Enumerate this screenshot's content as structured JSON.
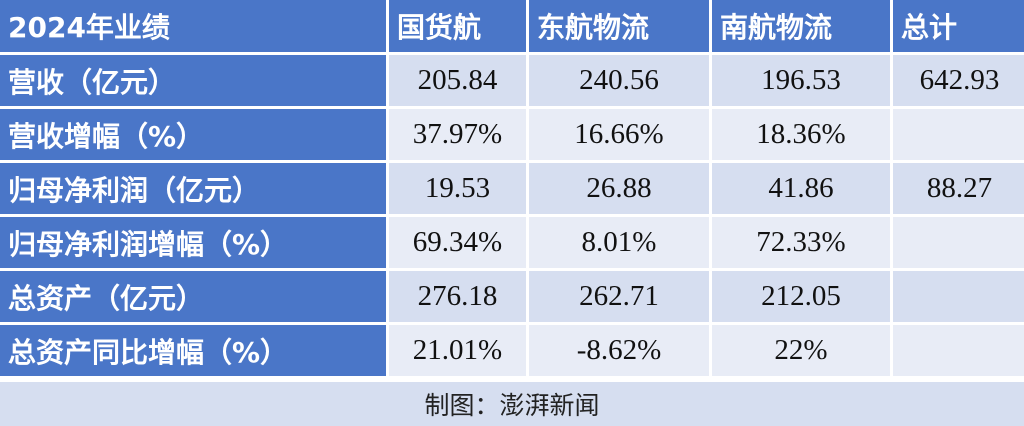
{
  "table": {
    "header": [
      "2024年业绩",
      "国货航",
      "东航物流",
      "南航物流",
      "总计"
    ],
    "rows": [
      [
        "营收（亿元）",
        "205.84",
        "240.56",
        "196.53",
        "642.93"
      ],
      [
        "营收增幅（%）",
        "37.97%",
        "16.66%",
        "18.36%",
        null
      ],
      [
        "归母净利润（亿元）",
        "19.53",
        "26.88",
        "41.86",
        "88.27"
      ],
      [
        "归母净利润增幅（%）",
        "69.34%",
        "8.01%",
        "72.33%",
        null
      ],
      [
        "总资产（亿元）",
        "276.18",
        "262.71",
        "212.05",
        null
      ],
      [
        "总资产同比增幅（%）",
        "21.01%",
        "-8.62%",
        "22%",
        null
      ]
    ],
    "footer": "制图：澎湃新闻"
  }
}
